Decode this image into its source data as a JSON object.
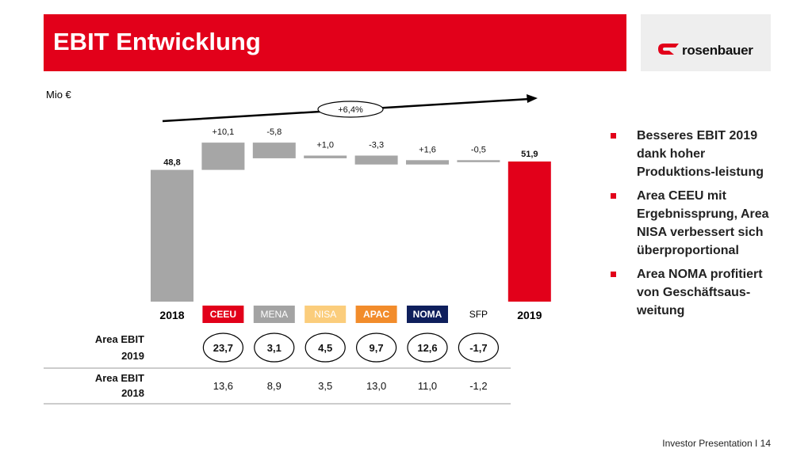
{
  "header": {
    "title": "EBIT Entwicklung",
    "logo_text": "rosenbauer"
  },
  "unit_label": "Mio €",
  "chart_data": {
    "type": "waterfall",
    "categories": [
      "2018",
      "CEEU",
      "MENA",
      "NISA",
      "APAC",
      "NOMA",
      "SFP",
      "2019"
    ],
    "category_colors": [
      "#ffffff",
      "#e2001a",
      "#a3a3a3",
      "#fbcd7c",
      "#f28c2b",
      "#0f1f5c",
      "#ffffff",
      "#ffffff"
    ],
    "category_text_colors": [
      "#000000",
      "#ffffff",
      "#ffffff",
      "#ffffff",
      "#ffffff",
      "#ffffff",
      "#000000",
      "#000000"
    ],
    "bar_colors": [
      "#a6a6a6",
      "#a6a6a6",
      "#a6a6a6",
      "#a6a6a6",
      "#a6a6a6",
      "#a6a6a6",
      "#a6a6a6",
      "#e2001a"
    ],
    "values": [
      48.8,
      10.1,
      -5.8,
      1.0,
      -3.3,
      1.6,
      -0.5,
      51.9
    ],
    "value_labels": [
      "48,8",
      "+10,1",
      "-5,8",
      "+1,0",
      "-3,3",
      "+1,6",
      "-0,5",
      "51,9"
    ],
    "kinds": [
      "total",
      "delta",
      "delta",
      "delta",
      "delta",
      "delta",
      "delta",
      "total"
    ],
    "growth_label": "+6,4%",
    "table": {
      "rows": [
        {
          "label_line1": "Area EBIT",
          "label_line2": "2019",
          "values": [
            "23,7",
            "3,1",
            "4,5",
            "9,7",
            "12,6",
            "-1,7"
          ]
        },
        {
          "label_line1": "Area EBIT",
          "label_line2": "2018",
          "values": [
            "13,6",
            "8,9",
            "3,5",
            "13,0",
            "11,0",
            "-1,2"
          ]
        }
      ]
    }
  },
  "bullets": [
    "Besseres EBIT 2019 dank hoher Produktions-leistung",
    "Area CEEU mit Ergebnissprung, Area NISA verbessert sich überproportional",
    "Area NOMA profitiert von Geschäftsaus-weitung"
  ],
  "footer": "Investor Presentation I 14",
  "colors": {
    "brand_red": "#e2001a",
    "bar_grey": "#a6a6a6"
  }
}
